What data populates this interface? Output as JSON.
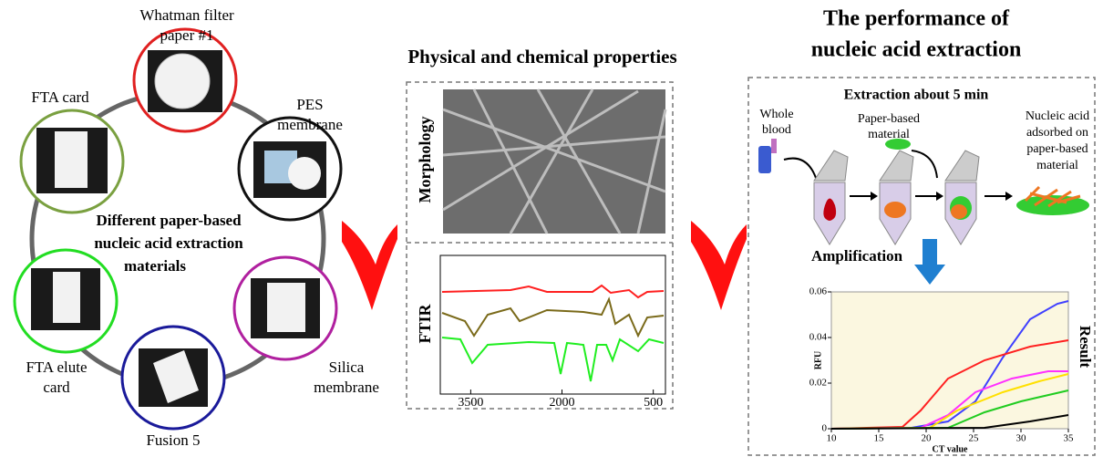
{
  "left": {
    "title_lines": [
      "Different paper-based",
      "nucleic acid extraction",
      "materials"
    ],
    "materials": [
      {
        "label_lines": [
          "Whatman filter",
          "paper #1"
        ]
      },
      {
        "label_lines": [
          "PES",
          "membrane"
        ]
      },
      {
        "label_lines": [
          "Silica",
          "membrane"
        ]
      },
      {
        "label_lines": [
          "Fusion 5"
        ]
      },
      {
        "label_lines": [
          "FTA elute",
          "card"
        ]
      },
      {
        "label_lines": [
          "FTA card"
        ]
      }
    ]
  },
  "middle": {
    "title": "Physical and chemical properties",
    "morphology_label": "Morphology",
    "ftir": {
      "label": "FTIR",
      "xlim": [
        4000,
        300
      ],
      "xticks": [
        3500,
        2000,
        500
      ]
    }
  },
  "right": {
    "title_lines": [
      "The performance of",
      "nucleic acid extraction"
    ],
    "step_title": "Extraction about 5 min",
    "whole_blood_lines": [
      "Whole",
      "blood"
    ],
    "paper_material_lines": [
      "Paper-based",
      "material"
    ],
    "adsorbed_lines": [
      "Nucleic acid",
      "adsorbed on",
      "paper-based",
      "material"
    ],
    "amplification": "Amplification",
    "result": "Result",
    "rfu_chart": {
      "y_label": "RFU",
      "x_label": "CT value",
      "xlim": [
        10,
        35
      ],
      "xticks": [
        10,
        15,
        20,
        25,
        30,
        35
      ],
      "ylim": [
        0,
        0.06
      ],
      "yticks": [
        0,
        0.02,
        0.04,
        0.06
      ]
    }
  }
}
